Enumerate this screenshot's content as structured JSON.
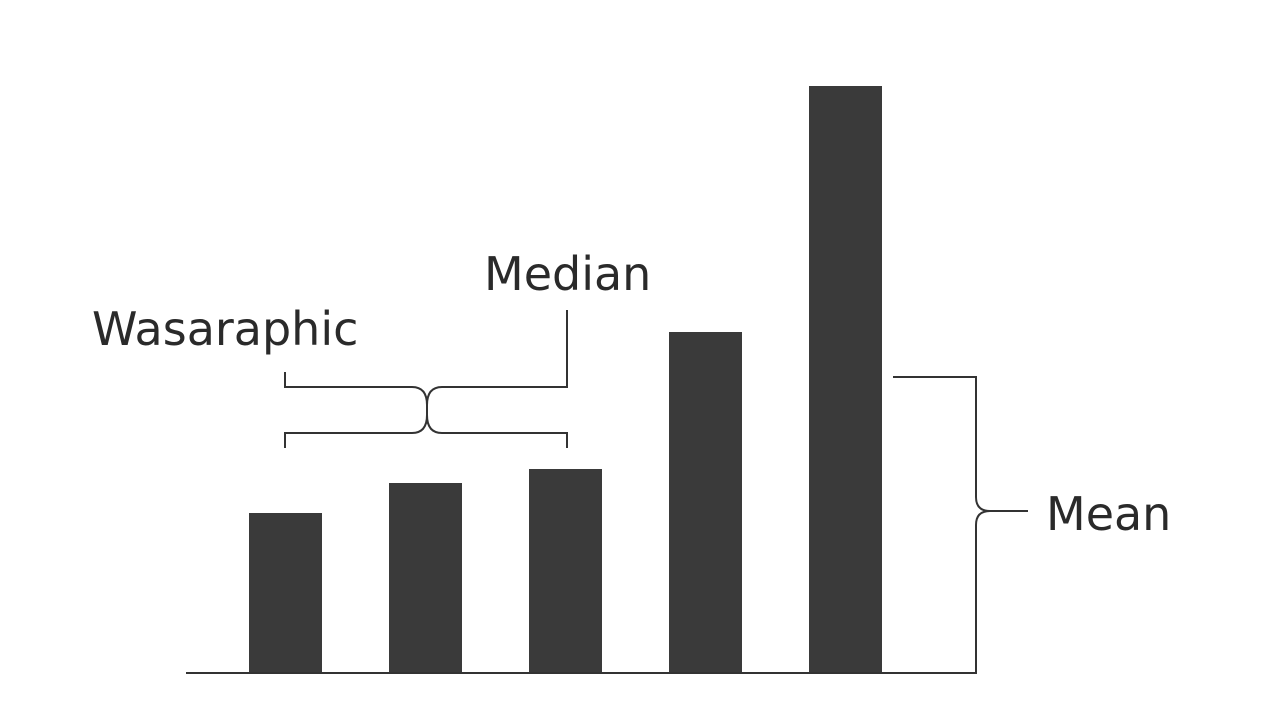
{
  "chart_data": {
    "type": "bar",
    "annotations": [
      "Wasaraphic",
      "Median",
      "Mean"
    ],
    "categories": [
      null,
      null,
      null,
      null,
      null
    ],
    "values": [
      160,
      190,
      204,
      341,
      587
    ],
    "color": "#3a3a3a",
    "ylim": [
      0,
      600
    ]
  }
}
